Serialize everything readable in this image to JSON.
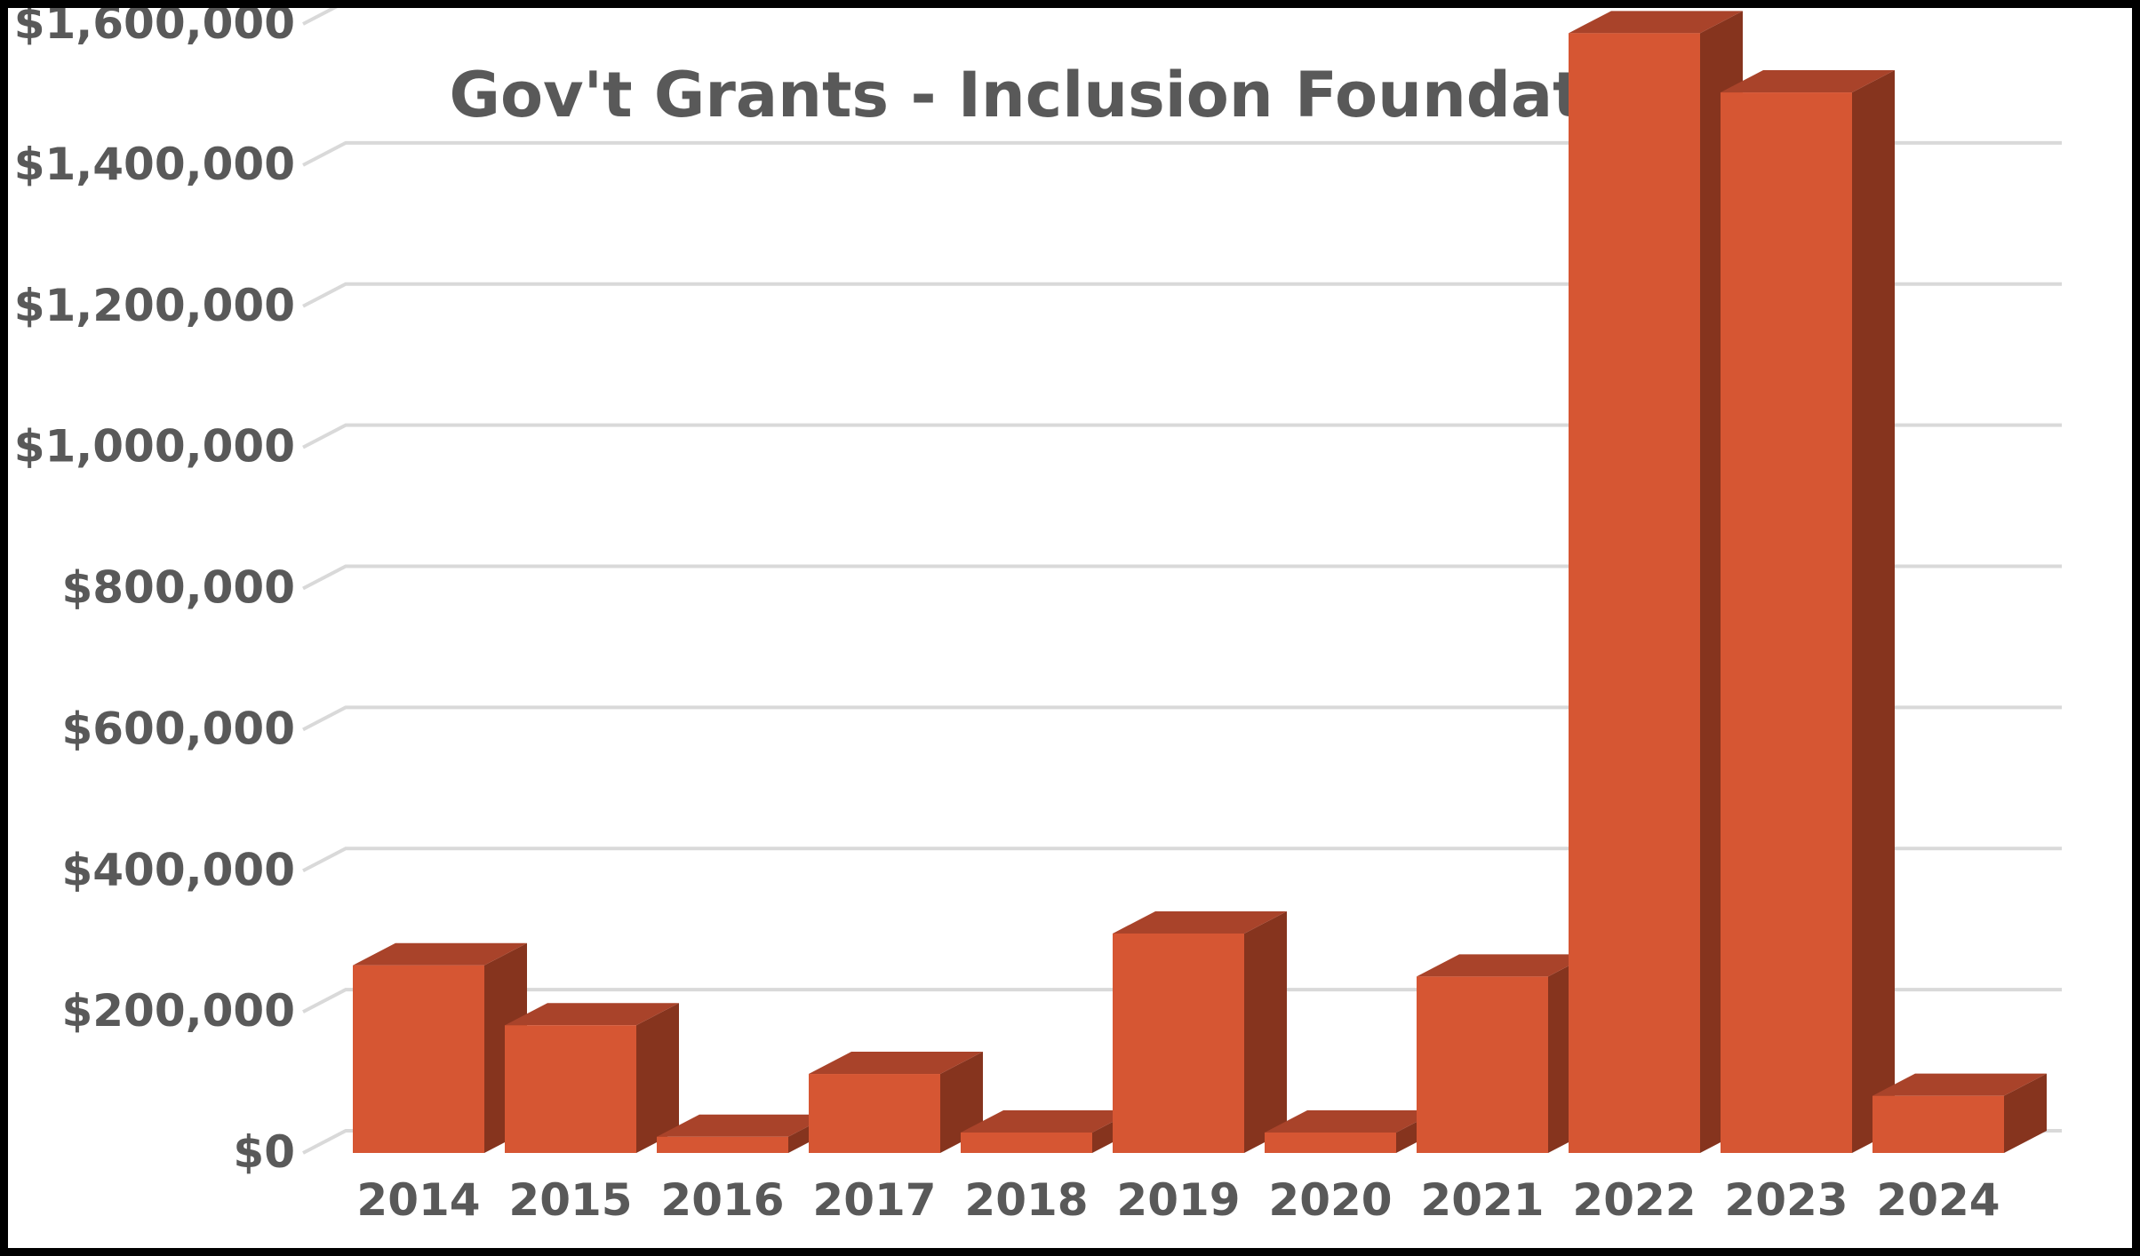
{
  "chart_data": {
    "type": "bar",
    "title": "Gov't Grants - Inclusion Foundation",
    "xlabel": "",
    "ylabel": "",
    "categories": [
      "2014",
      "2015",
      "2016",
      "2017",
      "2018",
      "2019",
      "2020",
      "2021",
      "2022",
      "2023",
      "2024"
    ],
    "values": [
      266000,
      181000,
      23000,
      112000,
      29000,
      311000,
      29000,
      250000,
      1587000,
      1503000,
      81000
    ],
    "ylim": [
      0,
      1600000
    ],
    "yticks": [
      0,
      200000,
      400000,
      600000,
      800000,
      1000000,
      1200000,
      1400000,
      1600000
    ],
    "ytick_labels": [
      "$0",
      "$200,000",
      "$400,000",
      "$600,000",
      "$800,000",
      "$1,000,000",
      "$1,200,000",
      "$1,400,000",
      "$1,600,000"
    ],
    "grid": true,
    "legend": "none",
    "style": "3d-column",
    "colors": {
      "bar_front": "#D65633",
      "bar_top": "#A9432A",
      "bar_side": "#86341E",
      "gridline": "#D9D9D9",
      "text": "#595959",
      "frame": "#000000",
      "background": "#FFFFFF"
    }
  }
}
